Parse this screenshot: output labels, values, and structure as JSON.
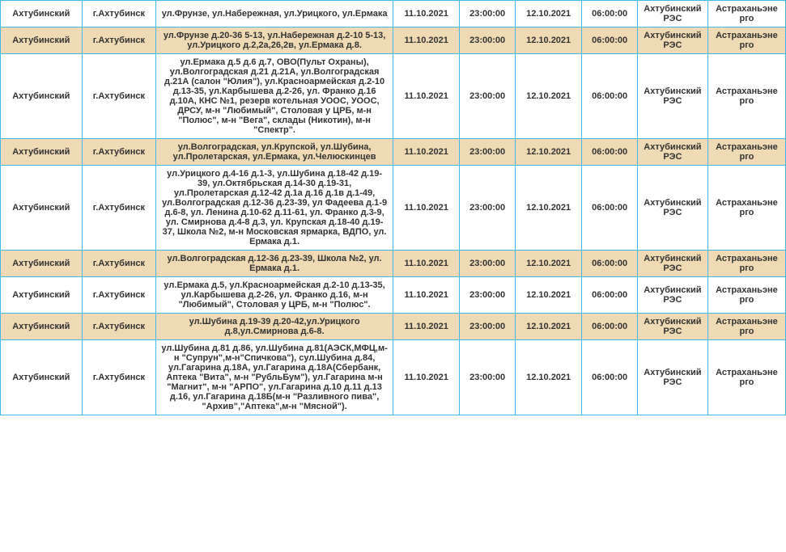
{
  "table": {
    "border_color": "#3db8e8",
    "row_bg_odd": "#ffffff",
    "row_bg_even": "#f0d9b5",
    "text_color": "#333333",
    "font_size": 11,
    "columns": [
      {
        "key": "district",
        "width": "11%"
      },
      {
        "key": "city",
        "width": "10%"
      },
      {
        "key": "address",
        "width": "32%"
      },
      {
        "key": "date_start",
        "width": "9%"
      },
      {
        "key": "time_start",
        "width": "7.5%"
      },
      {
        "key": "date_end",
        "width": "9%"
      },
      {
        "key": "time_end",
        "width": "7.5%"
      },
      {
        "key": "org1",
        "width": "9.5%"
      },
      {
        "key": "org2",
        "width": "10.5%"
      }
    ],
    "rows": [
      {
        "district": "Ахтубинский",
        "city": "г.Ахтубинск",
        "address": "ул.Фрунзе, ул.Набережная, ул.Урицкого, ул.Ермака",
        "date_start": "11.10.2021",
        "time_start": "23:00:00",
        "date_end": "12.10.2021",
        "time_end": "06:00:00",
        "org1": "Ахтубинский РЭС",
        "org2": "Астраханьэнерго"
      },
      {
        "district": "Ахтубинский",
        "city": "г.Ахтубинск",
        "address": "ул.Фрунзе д.20-36 5-13, ул.Набережная д.2-10 5-13, ул.Урицкого д.2,2а,26,2в, ул.Ермака д.8.",
        "date_start": "11.10.2021",
        "time_start": "23:00:00",
        "date_end": "12.10.2021",
        "time_end": "06:00:00",
        "org1": "Ахтубинский РЭС",
        "org2": "Астраханьэнерго"
      },
      {
        "district": "Ахтубинский",
        "city": "г.Ахтубинск",
        "address": "ул.Ермака д.5 д.6 д.7, ОВО(Пульт Охраны), ул.Волгоградская д.21 д.21А, ул.Волгоградская д.21А (салон \"Юлия\"), ул.Красноармейская д.2-10 д.13-35, ул.Карбышева д.2-26, ул. Франко д.16 д.10А, КНС №1, резерв котельная УООС, УООС, ДРСУ, м-н \"Любимый\", Столовая у ЦРБ, м-н \"Полюс\", м-н \"Вега\", склады (Никотин), м-н \"Спектр\".",
        "date_start": "11.10.2021",
        "time_start": "23:00:00",
        "date_end": "12.10.2021",
        "time_end": "06:00:00",
        "org1": "Ахтубинский РЭС",
        "org2": "Астраханьэнерго"
      },
      {
        "district": "Ахтубинский",
        "city": "г.Ахтубинск",
        "address": "ул.Волгоградская, ул.Крупской, ул.Шубина, ул.Пролетарская, ул.Ермака, ул.Челюскинцев",
        "date_start": "11.10.2021",
        "time_start": "23:00:00",
        "date_end": "12.10.2021",
        "time_end": "06:00:00",
        "org1": "Ахтубинский РЭС",
        "org2": "Астраханьэнерго"
      },
      {
        "district": "Ахтубинский",
        "city": "г.Ахтубинск",
        "address": "ул.Урицкого д.4-16 д.1-3, ул.Шубина д.18-42 д.19-39, ул.Октябрьская д.14-30 д.19-31, ул.Пролетарская д.12-42 д.1а д.16 д.1в д.1-49, ул.Волгоградская д.12-36 д.23-39, ул Фадеева д.1-9 д.6-8, ул. Ленина д.10-62 д.11-61, ул. Франко д.3-9, ул. Смирнова д.4-8 д.3, ул. Крупская д.18-40 д.19-37, Школа №2, м-н Московская ярмарка, ВДПО, ул. Ермака д.1.",
        "date_start": "11.10.2021",
        "time_start": "23:00:00",
        "date_end": "12.10.2021",
        "time_end": "06:00:00",
        "org1": "Ахтубинский РЭС",
        "org2": "Астраханьэнерго"
      },
      {
        "district": "Ахтубинский",
        "city": "г.Ахтубинск",
        "address": "ул.Волгоградская д.12-36 д.23-39, Школа №2, ул. Ермака д.1.",
        "date_start": "11.10.2021",
        "time_start": "23:00:00",
        "date_end": "12.10.2021",
        "time_end": "06:00:00",
        "org1": "Ахтубинский РЭС",
        "org2": "Астраханьэнерго"
      },
      {
        "district": "Ахтубинский",
        "city": "г.Ахтубинск",
        "address": "ул.Ермака д.5, ул.Красноармейская д.2-10 д.13-35, ул.Карбышева д.2-26, ул. Франко д.16, м-н \"Любимый\", Столовая у ЦРБ, м-н \"Полюс\".",
        "date_start": "11.10.2021",
        "time_start": "23:00:00",
        "date_end": "12.10.2021",
        "time_end": "06:00:00",
        "org1": "Ахтубинский РЭС",
        "org2": "Астраханьэнерго"
      },
      {
        "district": "Ахтубинский",
        "city": "г.Ахтубинск",
        "address": "ул.Шубина д.19-39 д.20-42,ул.Урицкого д.8,ул.Смирнова д.6-8.",
        "date_start": "11.10.2021",
        "time_start": "23:00:00",
        "date_end": "12.10.2021",
        "time_end": "06:00:00",
        "org1": "Ахтубинский РЭС",
        "org2": "Астраханьэнерго"
      },
      {
        "district": "Ахтубинский",
        "city": "г.Ахтубинск",
        "address": "ул.Шубина д.81 д.86, ул.Шубина д.81(АЭСК,МФЦ,м-н \"Супрун\",м-н\"Спичкова\"), сул.Шубина д.84, ул.Гагарина д.18А, ул.Гагарина д.18А(Сбербанк, Аптека \"Вита\", м-н \"РубльБум\"), ул.Гагарина м-н \"Магнит\", м-н \"АРПО\", ул.Гагарина д.10 д.11 д.13 д.16, ул.Гагарина д.18Б(м-н \"Разливного пива\", \"Архив\",\"Аптека\",м-н \"Мясной\").",
        "date_start": "11.10.2021",
        "time_start": "23:00:00",
        "date_end": "12.10.2021",
        "time_end": "06:00:00",
        "org1": "Ахтубинский РЭС",
        "org2": "Астраханьэнерго"
      }
    ]
  }
}
